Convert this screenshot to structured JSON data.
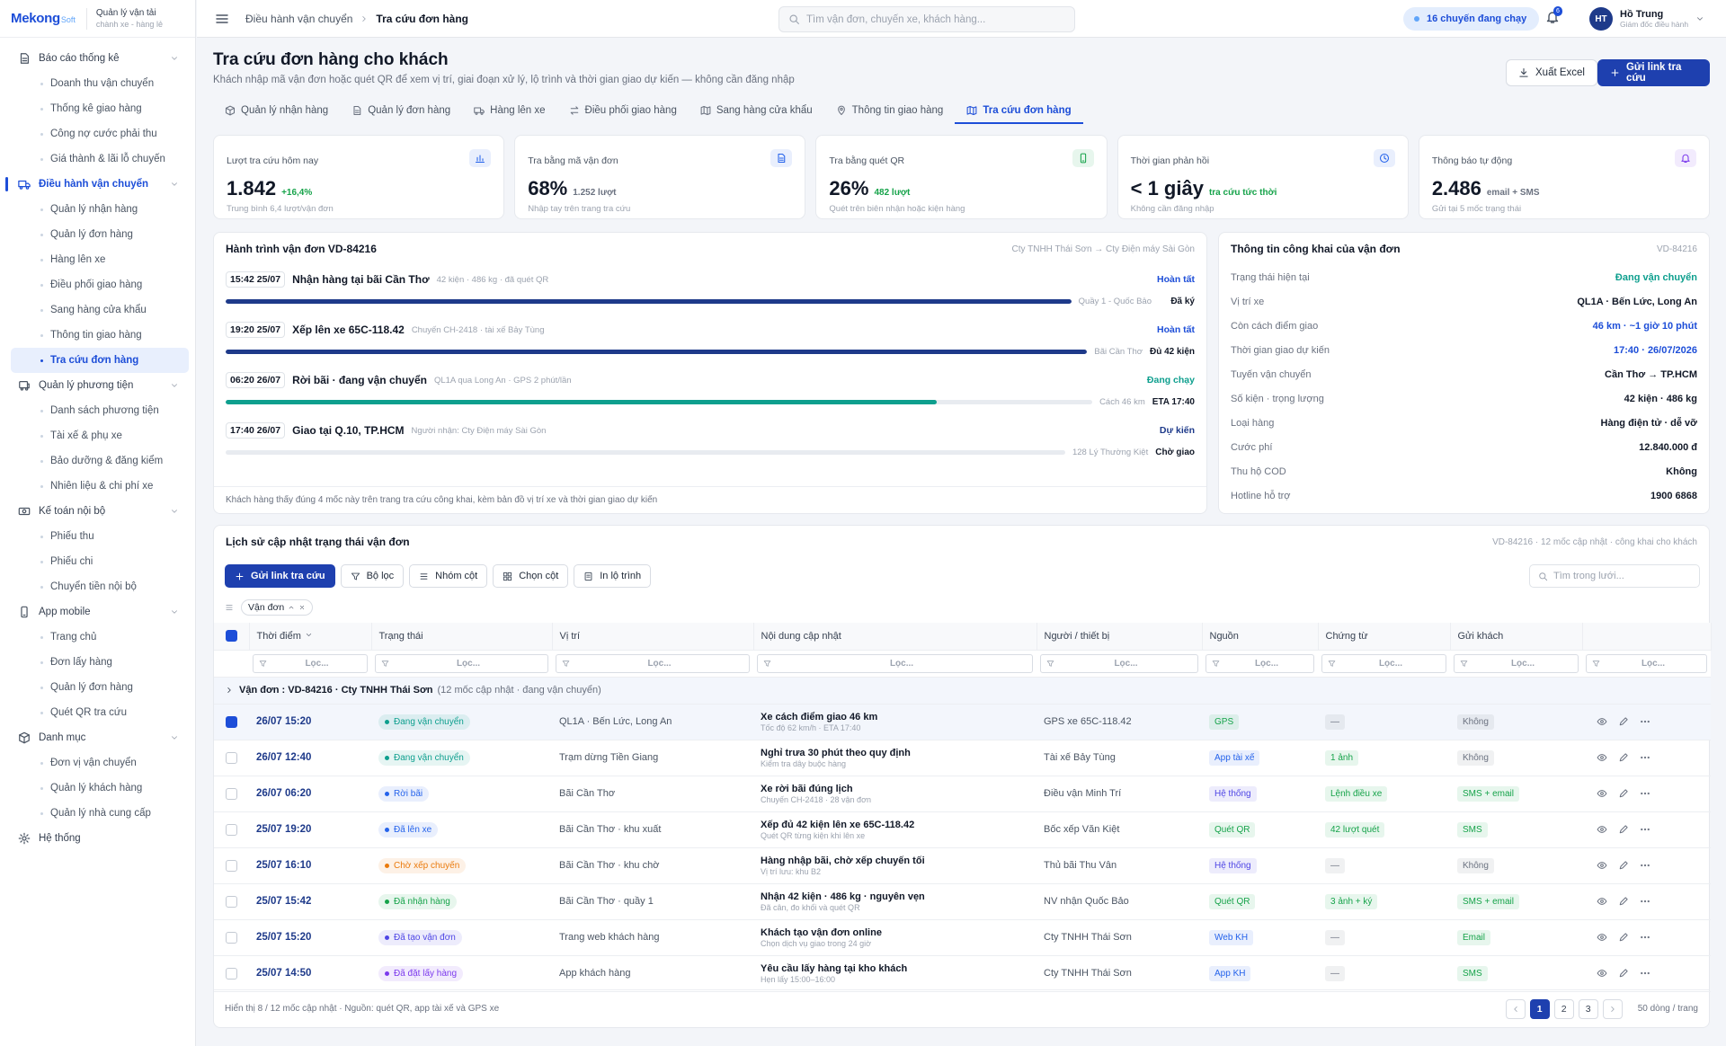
{
  "brand": {
    "logo": "Mekong",
    "logo_suffix": "Soft",
    "app_name": "Quản lý vận tải",
    "app_sub": "chành xe - hàng lẻ"
  },
  "sidebar": {
    "active_group": 1,
    "active_item": 6,
    "groups": [
      {
        "label": "Báo cáo thống kê",
        "items": [
          "Doanh thu vận chuyển",
          "Thống kê giao hàng",
          "Công nợ cước phải thu",
          "Giá thành & lãi lỗ chuyến"
        ]
      },
      {
        "label": "Điều hành vận chuyển",
        "items": [
          "Quản lý nhận hàng",
          "Quản lý đơn hàng",
          "Hàng lên xe",
          "Điều phối giao hàng",
          "Sang hàng cửa khẩu",
          "Thông tin giao hàng",
          "Tra cứu đơn hàng"
        ]
      },
      {
        "label": "Quản lý phương tiện",
        "items": [
          "Danh sách phương tiện",
          "Tài xế & phụ xe",
          "Bảo dưỡng & đăng kiểm",
          "Nhiên liệu & chi phí xe"
        ]
      },
      {
        "label": "Kế toán nội bộ",
        "items": [
          "Phiếu thu",
          "Phiếu chi",
          "Chuyển tiền nội bộ"
        ]
      },
      {
        "label": "App mobile",
        "items": [
          "Trang chủ",
          "Đơn lấy hàng",
          "Quản lý đơn hàng",
          "Quét QR tra cứu"
        ]
      },
      {
        "label": "Danh mục",
        "items": [
          "Đơn vị vận chuyển",
          "Quản lý khách hàng",
          "Quản lý nhà cung cấp"
        ]
      },
      {
        "label": "Hệ thống",
        "items": []
      }
    ]
  },
  "topbar": {
    "breadcrumb": [
      "Điều hành vận chuyển",
      "Tra cứu đơn hàng"
    ],
    "search_placeholder": "Tìm vận đơn, chuyến xe, khách hàng...",
    "status": "16 chuyến đang chạy",
    "notifications": 6,
    "user": {
      "initials": "HT",
      "name": "Hồ Trung",
      "role": "Giám đốc điều hành"
    }
  },
  "page": {
    "title": "Tra cứu đơn hàng cho khách",
    "subtitle": "Khách nhập mã vận đơn hoặc quét QR để xem vị trí, giai đoạn xử lý, lộ trình và thời gian giao dự kiến — không cần đăng nhập",
    "export_button": "Xuất Excel",
    "primary_button": "Gửi link tra cứu"
  },
  "tabs": {
    "active": 6,
    "items": [
      "Quản lý nhận hàng",
      "Quản lý đơn hàng",
      "Hàng lên xe",
      "Điều phối giao hàng",
      "Sang hàng cửa khẩu",
      "Thông tin giao hàng",
      "Tra cứu đơn hàng"
    ]
  },
  "kpis": [
    {
      "label": "Lượt tra cứu hôm nay",
      "value": "1.842",
      "delta": "+16,4%",
      "note": "Trung bình 6,4 lượt/vận đơn",
      "color": "#16a34a",
      "icon_color": "#2563eb"
    },
    {
      "label": "Tra bằng mã vận đơn",
      "value": "68%",
      "delta": "1.252 lượt",
      "note": "Nhập tay trên trang tra cứu",
      "color": "#6b7280",
      "icon_color": "#2563eb"
    },
    {
      "label": "Tra bằng quét QR",
      "value": "26%",
      "delta": "482 lượt",
      "note": "Quét trên biên nhận hoặc kiện hàng",
      "color": "#16a34a",
      "icon_color": "#16a34a"
    },
    {
      "label": "Thời gian phản hồi",
      "value": "< 1 giây",
      "delta": "tra cứu tức thời",
      "note": "Không cần đăng nhập",
      "color": "#16a34a",
      "icon_color": "#2563eb"
    },
    {
      "label": "Thông báo tự động",
      "value": "2.486",
      "delta": "email + SMS",
      "note": "Gửi tại 5 mốc trạng thái",
      "color": "#6b7280",
      "icon_color": "#7c3aed"
    }
  ],
  "journey": {
    "title": "Hành trình vận đơn VD-84216",
    "route": "Cty TNHH Thái Sơn → Cty Điện máy Sài Gòn",
    "steps": [
      {
        "time": "15:42 25/07",
        "title": "Nhận hàng tại bãi Cần Thơ",
        "meta": "42 kiện · 486 kg · đã quét QR",
        "status": "Hoàn tất",
        "status_color": "#1d4ed8",
        "progress": 100,
        "color": "#1e3a8a",
        "place": "Quầy 1 - Quốc Bảo",
        "result": "Đã ký"
      },
      {
        "time": "19:20 25/07",
        "title": "Xếp lên xe 65C-118.42",
        "meta": "Chuyến CH-2418 · tài xế Bảy Tùng",
        "status": "Hoàn tất",
        "status_color": "#1d4ed8",
        "progress": 100,
        "color": "#1e3a8a",
        "place": "Bãi Cần Thơ",
        "result": "Đủ 42 kiện"
      },
      {
        "time": "06:20 26/07",
        "title": "Rời bãi · đang vận chuyển",
        "meta": "QL1A qua Long An · GPS 2 phút/lần",
        "status": "Đang chạy",
        "status_color": "#0e9f8e",
        "progress": 82,
        "color": "#0e9f8e",
        "place": "Cách 46 km",
        "result": "ETA 17:40"
      },
      {
        "time": "17:40 26/07",
        "title": "Giao tại Q.10, TP.HCM",
        "meta": "Người nhận: Cty Điện máy Sài Gòn",
        "status": "Dự kiến",
        "status_color": "#1e3a8a",
        "progress": 0,
        "color": "#1e3a8a",
        "place": "128 Lý Thường Kiệt",
        "result": "Chờ giao"
      }
    ],
    "note": "Khách hàng thấy đúng 4 mốc này trên trang tra cứu công khai, kèm bản đồ vị trí xe và thời gian giao dự kiến"
  },
  "public_info": {
    "title": "Thông tin công khai của vận đơn",
    "code": "VD-84216",
    "rows": [
      {
        "label": "Trạng thái hiện tại",
        "value": "Đang vận chuyển",
        "color": "#0e9f8e"
      },
      {
        "label": "Vị trí xe",
        "value": "QL1A · Bến Lức, Long An",
        "color": "#111827"
      },
      {
        "label": "Còn cách điểm giao",
        "value": "46 km · ~1 giờ 10 phút",
        "color": "#1d4ed8"
      },
      {
        "label": "Thời gian giao dự kiến",
        "value": "17:40 · 26/07/2026",
        "color": "#1d4ed8"
      },
      {
        "label": "Tuyến vận chuyển",
        "value": "Cần Thơ → TP.HCM",
        "color": "#111827"
      },
      {
        "label": "Số kiện · trọng lượng",
        "value": "42 kiện · 486 kg",
        "color": "#111827"
      },
      {
        "label": "Loại hàng",
        "value": "Hàng điện tử · dễ vỡ",
        "color": "#111827"
      },
      {
        "label": "Cước phí",
        "value": "12.840.000 đ",
        "color": "#111827"
      },
      {
        "label": "Thu hộ COD",
        "value": "Không",
        "color": "#111827"
      },
      {
        "label": "Hotline hỗ trợ",
        "value": "1900 6868",
        "color": "#111827"
      }
    ]
  },
  "history": {
    "title": "Lịch sử cập nhật trạng thái vận đơn",
    "meta": "VD-84216 · 12 mốc cập nhật · công khai cho khách",
    "primary_button": "Gửi link tra cứu",
    "toolbar": [
      "Bộ lọc",
      "Nhóm cột",
      "Chọn cột",
      "In lộ trình"
    ],
    "search_placeholder": "Tìm trong lưới...",
    "group_chip": "Vận đơn",
    "columns": [
      "Thời điểm",
      "Trạng thái",
      "Vị trí",
      "Nội dung cập nhật",
      "Người / thiết bị",
      "Nguồn",
      "Chứng từ",
      "Gửi khách"
    ],
    "filter_placeholder": "Lọc...",
    "group_title": "Vận đơn : VD-84216 · Cty TNHH Thái Sơn",
    "group_meta": "(12 mốc cập nhật · đang vận chuyển)",
    "selected_row": 0,
    "rows": [
      {
        "time": "26/07 15:20",
        "status": "Đang vận chuyển",
        "status_color": "#0e9f8e",
        "location": "QL1A · Bến Lức, Long An",
        "content": "Xe cách điểm giao 46 km",
        "detail": "Tốc độ 62 km/h · ETA 17:40",
        "actor": "GPS xe 65C-118.42",
        "source": "GPS",
        "source_color": "#16a34a",
        "doc": "—",
        "doc_color": "#6b7280",
        "notify": "Không",
        "notify_color": "#6b7280"
      },
      {
        "time": "26/07 12:40",
        "status": "Đang vận chuyển",
        "status_color": "#0e9f8e",
        "location": "Trạm dừng Tiền Giang",
        "content": "Nghỉ trưa 30 phút theo quy định",
        "detail": "Kiểm tra dây buộc hàng",
        "actor": "Tài xế Bảy Tùng",
        "source": "App tài xế",
        "source_color": "#2563eb",
        "doc": "1 ảnh",
        "doc_color": "#16a34a",
        "notify": "Không",
        "notify_color": "#6b7280"
      },
      {
        "time": "26/07 06:20",
        "status": "Rời bãi",
        "status_color": "#2563eb",
        "location": "Bãi Cần Thơ",
        "content": "Xe rời bãi đúng lịch",
        "detail": "Chuyến CH-2418 · 28 vận đơn",
        "actor": "Điều vận Minh Trí",
        "source": "Hệ thống",
        "source_color": "#4f46e5",
        "doc": "Lệnh điều xe",
        "doc_color": "#16a34a",
        "notify": "SMS + email",
        "notify_color": "#16a34a"
      },
      {
        "time": "25/07 19:20",
        "status": "Đã lên xe",
        "status_color": "#2563eb",
        "location": "Bãi Cần Thơ · khu xuất",
        "content": "Xếp đủ 42 kiện lên xe 65C-118.42",
        "detail": "Quét QR từng kiện khi lên xe",
        "actor": "Bốc xếp Văn Kiệt",
        "source": "Quét QR",
        "source_color": "#16a34a",
        "doc": "42 lượt quét",
        "doc_color": "#16a34a",
        "notify": "SMS",
        "notify_color": "#16a34a"
      },
      {
        "time": "25/07 16:10",
        "status": "Chờ xếp chuyến",
        "status_color": "#ea7a0c",
        "location": "Bãi Cần Thơ · khu chờ",
        "content": "Hàng nhập bãi, chờ xếp chuyến tối",
        "detail": "Vị trí lưu: khu B2",
        "actor": "Thủ bãi Thu Vân",
        "source": "Hệ thống",
        "source_color": "#4f46e5",
        "doc": "—",
        "doc_color": "#6b7280",
        "notify": "Không",
        "notify_color": "#6b7280"
      },
      {
        "time": "25/07 15:42",
        "status": "Đã nhận hàng",
        "status_color": "#16a34a",
        "location": "Bãi Cần Thơ · quầy 1",
        "content": "Nhận 42 kiện · 486 kg · nguyên vẹn",
        "detail": "Đã cân, đo khối và quét QR",
        "actor": "NV nhận Quốc Bảo",
        "source": "Quét QR",
        "source_color": "#16a34a",
        "doc": "3 ảnh + ký",
        "doc_color": "#16a34a",
        "notify": "SMS + email",
        "notify_color": "#16a34a"
      },
      {
        "time": "25/07 15:20",
        "status": "Đã tạo vận đơn",
        "status_color": "#4f46e5",
        "location": "Trang web khách hàng",
        "content": "Khách tạo vận đơn online",
        "detail": "Chọn dịch vụ giao trong 24 giờ",
        "actor": "Cty TNHH Thái Sơn",
        "source": "Web KH",
        "source_color": "#2563eb",
        "doc": "—",
        "doc_color": "#6b7280",
        "notify": "Email",
        "notify_color": "#16a34a"
      },
      {
        "time": "25/07 14:50",
        "status": "Đã đặt lấy hàng",
        "status_color": "#7c3aed",
        "location": "App khách hàng",
        "content": "Yêu cầu lấy hàng tại kho khách",
        "detail": "Hẹn lấy 15:00–16:00",
        "actor": "Cty TNHH Thái Sơn",
        "source": "App KH",
        "source_color": "#2563eb",
        "doc": "—",
        "doc_color": "#6b7280",
        "notify": "SMS",
        "notify_color": "#16a34a"
      }
    ],
    "footer": "Hiển thị 8 / 12 mốc cập nhật · Nguồn: quét QR, app tài xế và GPS xe",
    "pages": [
      1,
      2,
      3
    ],
    "current_page": 0,
    "page_size": "50 dòng / trang"
  }
}
